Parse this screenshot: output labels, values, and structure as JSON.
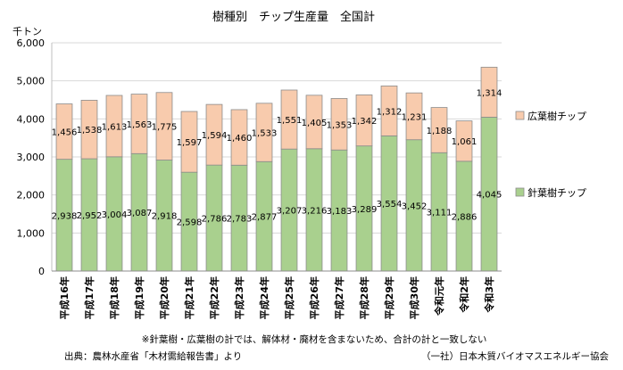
{
  "chart_data": {
    "type": "bar",
    "stacked": true,
    "title": "樹種別　チップ生産量　全国計",
    "unit_label": "千トン",
    "ylim": [
      0,
      6000
    ],
    "yticks": [
      0,
      1000,
      2000,
      3000,
      4000,
      5000,
      6000
    ],
    "ytick_labels": [
      "0",
      "1,000",
      "2,000",
      "3,000",
      "4,000",
      "5,000",
      "6,000"
    ],
    "grid": true,
    "legend_position": "right",
    "categories": [
      "平成16年",
      "平成17年",
      "平成18年",
      "平成19年",
      "平成20年",
      "平成21年",
      "平成22年",
      "平成23年",
      "平成24年",
      "平成25年",
      "平成26年",
      "平成27年",
      "平成28年",
      "平成29年",
      "平成30年",
      "令和元年",
      "令和2年",
      "令和3年"
    ],
    "series": [
      {
        "name": "針葉樹チップ",
        "color": "#a9d08e",
        "values": [
          2938,
          2952,
          3004,
          3087,
          2918,
          2598,
          2786,
          2783,
          2877,
          3207,
          3216,
          3183,
          3289,
          3554,
          3452,
          3111,
          2886,
          4045
        ],
        "labels": [
          "2,938",
          "2,952",
          "3,004",
          "3,087",
          "2,918",
          "2,598",
          "2,786",
          "2,783",
          "2,877",
          "3,207",
          "3,216",
          "3,183",
          "3,289",
          "3,554",
          "3,452",
          "3,111",
          "2,886",
          "4,045"
        ]
      },
      {
        "name": "広葉樹チップ",
        "color": "#f8cbad",
        "values": [
          1456,
          1538,
          1613,
          1563,
          1775,
          1597,
          1594,
          1460,
          1533,
          1551,
          1405,
          1353,
          1342,
          1312,
          1231,
          1188,
          1061,
          1314
        ],
        "labels": [
          "1,456",
          "1,538",
          "1,613",
          "1,563",
          "1,775",
          "1,597",
          "1,594",
          "1,460",
          "1,533",
          "1,551",
          "1,405",
          "1,353",
          "1,342",
          "1,312",
          "1,231",
          "1,188",
          "1,061",
          "1,314"
        ]
      }
    ],
    "note": "※針葉樹・広葉樹の計では、解体材・廃材を含まないため、合計の計と一致しない",
    "source": "出典：農林水産省「木材需給報告書」より",
    "credit": "（一社）日本木質バイオマスエネルギー協会"
  }
}
